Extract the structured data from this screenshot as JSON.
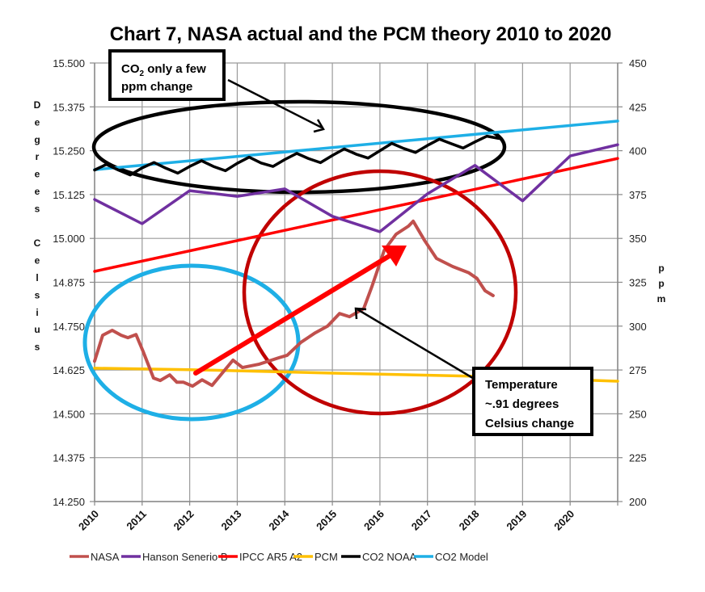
{
  "chart_data": {
    "type": "line",
    "title": "Chart 7, NASA actual and the PCM theory 2010 to 2020",
    "xlabel": "",
    "ylabel": "Degrees Celsius",
    "y2label": "ppm",
    "xlim": [
      2010,
      2021
    ],
    "ylim": [
      14.25,
      15.5
    ],
    "y2lim": [
      200,
      450
    ],
    "x_ticks": [
      "2010",
      "2011",
      "2012",
      "2013",
      "2014",
      "2015",
      "2016",
      "2017",
      "2018",
      "2019",
      "2020"
    ],
    "y_ticks": [
      "15.500",
      "15.375",
      "15.250",
      "15.125",
      "15.000",
      "14.875",
      "14.750",
      "14.625",
      "14.500",
      "14.375",
      "14.250"
    ],
    "y2_ticks": [
      "450",
      "425",
      "400",
      "375",
      "350",
      "325",
      "300",
      "275",
      "250",
      "225",
      "200"
    ],
    "grid": true,
    "legend_position": "bottom",
    "series": [
      {
        "name": "NASA",
        "axis": "left",
        "color": "#C0504D",
        "x": [
          2010.0,
          2010.17,
          2010.37,
          2010.56,
          2010.7,
          2010.87,
          2011.02,
          2011.24,
          2011.38,
          2011.58,
          2011.73,
          2011.87,
          2012.06,
          2012.26,
          2012.47,
          2012.64,
          2012.91,
          2013.11,
          2013.45,
          2013.88,
          2014.05,
          2014.34,
          2014.64,
          2014.9,
          2015.15,
          2015.36,
          2015.66,
          2015.83,
          2016.09,
          2016.34,
          2016.6,
          2016.7,
          2016.94,
          2017.19,
          2017.53,
          2017.87,
          2018.04,
          2018.21,
          2018.38
        ],
        "values": [
          14.65,
          14.724,
          14.738,
          14.724,
          14.717,
          14.726,
          14.678,
          14.602,
          14.595,
          14.611,
          14.59,
          14.59,
          14.579,
          14.597,
          14.581,
          14.609,
          14.653,
          14.632,
          14.641,
          14.66,
          14.667,
          14.704,
          14.731,
          14.75,
          14.786,
          14.777,
          14.8,
          14.862,
          14.966,
          15.012,
          15.035,
          15.049,
          14.994,
          14.943,
          14.92,
          14.902,
          14.886,
          14.851,
          14.837
        ]
      },
      {
        "name": "Hanson Senerio B",
        "axis": "left",
        "color": "#7030A0",
        "x": [
          2010,
          2011,
          2012,
          2013,
          2014,
          2015,
          2016,
          2017,
          2018,
          2019,
          2020,
          2021
        ],
        "values": [
          15.111,
          15.042,
          15.136,
          15.12,
          15.141,
          15.063,
          15.019,
          15.127,
          15.208,
          15.107,
          15.235,
          15.267
        ]
      },
      {
        "name": "IPCC AR5 A2",
        "axis": "left",
        "color": "#FF0000",
        "x": [
          2010,
          2021
        ],
        "values": [
          14.906,
          15.228
        ]
      },
      {
        "name": "PCM",
        "axis": "left",
        "color": "#FFC000",
        "x": [
          2010,
          2012,
          2015,
          2018,
          2021
        ],
        "values": [
          14.63,
          14.626,
          14.616,
          14.607,
          14.593
        ]
      },
      {
        "name": "CO2 NOAA",
        "axis": "right",
        "color": "#000000",
        "x": [
          2010.0,
          2010.25,
          2010.5,
          2010.75,
          2011.0,
          2011.25,
          2011.5,
          2011.75,
          2012.0,
          2012.25,
          2012.5,
          2012.75,
          2013.0,
          2013.25,
          2013.5,
          2013.75,
          2014.0,
          2014.25,
          2014.5,
          2014.75,
          2015.0,
          2015.25,
          2015.5,
          2015.75,
          2016.0,
          2016.25,
          2016.5,
          2016.75,
          2017.0,
          2017.25,
          2017.5,
          2017.75,
          2018.0,
          2018.25,
          2018.5
        ],
        "values": [
          389.0,
          392.2,
          389.0,
          386.2,
          390.2,
          393.3,
          390.0,
          387.2,
          391.0,
          394.3,
          391.0,
          388.6,
          392.8,
          396.3,
          393.0,
          391.0,
          395.0,
          398.5,
          395.5,
          393.2,
          397.3,
          401.0,
          398.0,
          395.8,
          400.0,
          404.2,
          401.3,
          399.0,
          403.0,
          406.6,
          404.0,
          401.5,
          405.0,
          408.3,
          407.0
        ]
      },
      {
        "name": "CO2 Model",
        "axis": "right",
        "color": "#1EAFE6",
        "x": [
          2010,
          2021
        ],
        "values": [
          389.2,
          416.9
        ]
      }
    ],
    "annotations": [
      {
        "text_line1": "CO",
        "subscript": "2",
        "text_line1_rest": " only a few",
        "text_line2": "ppm change"
      },
      {
        "text_lines": [
          "Temperature",
          "~.91 degrees",
          "Celsius change"
        ]
      }
    ]
  },
  "labels": {
    "left_axis_letters": [
      "D",
      "e",
      "g",
      "r",
      "e",
      "e",
      "s",
      "",
      "C",
      "e",
      "l",
      "s",
      "i",
      "u",
      "s"
    ],
    "right_axis_letters": [
      "p",
      "p",
      "m"
    ]
  }
}
